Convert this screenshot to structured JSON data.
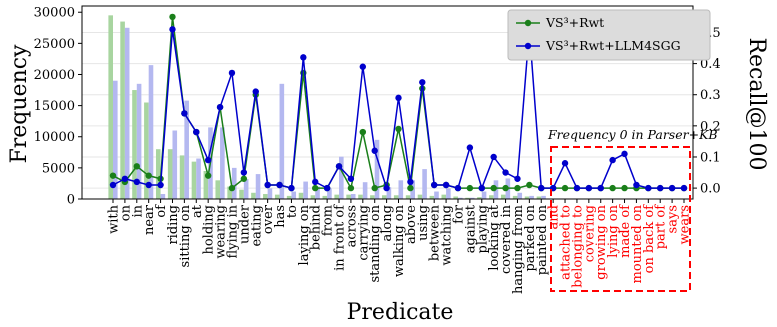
{
  "chart_data": {
    "type": "bar+line",
    "xlabel": "Predicate",
    "ylabel_left": "Frequency",
    "ylabel_right": "Recall@100",
    "ylim_left": [
      0,
      31000
    ],
    "ylim_right": [
      -0.035,
      0.585
    ],
    "left_ticks": [
      0,
      5000,
      10000,
      15000,
      20000,
      25000,
      30000
    ],
    "left_tick_labels": [
      "0",
      "5000",
      "10000",
      "15000",
      "20000",
      "25000",
      "30000"
    ],
    "right_ticks": [
      0.0,
      0.1,
      0.2,
      0.3,
      0.4,
      0.5
    ],
    "right_tick_labels": [
      "0.0",
      "0.1",
      "0.2",
      "0.3",
      "0.4",
      "0.5"
    ],
    "grid": "horizontal",
    "legend_position": "top-right",
    "categories": [
      "with",
      "on",
      "in",
      "near",
      "of",
      "riding",
      "sitting on",
      "at",
      "holding",
      "wearing",
      "flying in",
      "under",
      "eating",
      "over",
      "has",
      "to",
      "laying on",
      "behind",
      "from",
      "in front of",
      "across",
      "carrying",
      "standing on",
      "along",
      "walking on",
      "above",
      "using",
      "between",
      "watching",
      "for",
      "against",
      "playing",
      "looking at",
      "covered in",
      "hanging from",
      "parked on",
      "painted on",
      "and",
      "attached to",
      "belonging to",
      "covering",
      "growing on",
      "lying on",
      "made of",
      "mounted on",
      "on back of",
      "part of",
      "says",
      "wears"
    ],
    "red_categories_start": 37,
    "bar_series": [
      {
        "name": "green-bars",
        "color": "#a8d5a0",
        "values": [
          29500,
          28500,
          17500,
          15500,
          8000,
          8000,
          7000,
          6000,
          4500,
          3000,
          2000,
          1500,
          1000,
          800,
          700,
          500,
          1000,
          600,
          500,
          700,
          700,
          700,
          600,
          600,
          600,
          600,
          700,
          500,
          700,
          400,
          200,
          300,
          600,
          700,
          500,
          400,
          400,
          0,
          0,
          0,
          0,
          0,
          0,
          0,
          0,
          0,
          0,
          0,
          0
        ]
      },
      {
        "name": "blue-bars",
        "color": "#b4b8f0",
        "values": [
          19000,
          27500,
          18500,
          21500,
          800,
          11000,
          15800,
          6500,
          11500,
          11500,
          5000,
          3200,
          4000,
          1700,
          18500,
          1200,
          2800,
          2000,
          1700,
          6800,
          800,
          2700,
          9500,
          1900,
          3000,
          3000,
          4800,
          1200,
          1700,
          200,
          200,
          1200,
          3000,
          3300,
          1000,
          500,
          500,
          0,
          0,
          0,
          0,
          0,
          0,
          0,
          0,
          0,
          0,
          0,
          0
        ]
      }
    ],
    "series": [
      {
        "name": "VS³+Rwt",
        "color": "#1a7f1a",
        "values": [
          0.04,
          0.02,
          0.07,
          0.04,
          0.03,
          0.55,
          0.24,
          0.18,
          0.04,
          0.26,
          0.0,
          0.03,
          0.3,
          0.01,
          0.01,
          0.0,
          0.37,
          0.0,
          0.0,
          0.07,
          0.0,
          0.18,
          0.0,
          0.01,
          0.19,
          0.0,
          0.32,
          0.01,
          0.01,
          0.0,
          0.0,
          0.0,
          0.0,
          0.0,
          0.0,
          0.01,
          0.0,
          0.0,
          0.0,
          0.0,
          0.0,
          0.0,
          0.0,
          0.0,
          0.0,
          0.0,
          0.0,
          0.0,
          0.0
        ]
      },
      {
        "name": "VS³+Rwt+LLM4SGG",
        "color": "#0000cc",
        "values": [
          0.01,
          0.03,
          0.02,
          0.01,
          0.01,
          0.51,
          0.24,
          0.18,
          0.09,
          0.26,
          0.37,
          0.05,
          0.31,
          0.01,
          0.01,
          0.0,
          0.42,
          0.02,
          0.0,
          0.07,
          0.03,
          0.39,
          0.12,
          0.0,
          0.29,
          0.02,
          0.34,
          0.01,
          0.01,
          0.0,
          0.13,
          0.0,
          0.1,
          0.05,
          0.03,
          0.51,
          0.0,
          0.0,
          0.08,
          0.0,
          0.0,
          0.0,
          0.09,
          0.11,
          0.01,
          0.0,
          0.0,
          0.0,
          0.0
        ]
      }
    ],
    "annotations": [
      {
        "text": "Frequency 0 in Parser+KB",
        "style": "italic"
      }
    ]
  }
}
